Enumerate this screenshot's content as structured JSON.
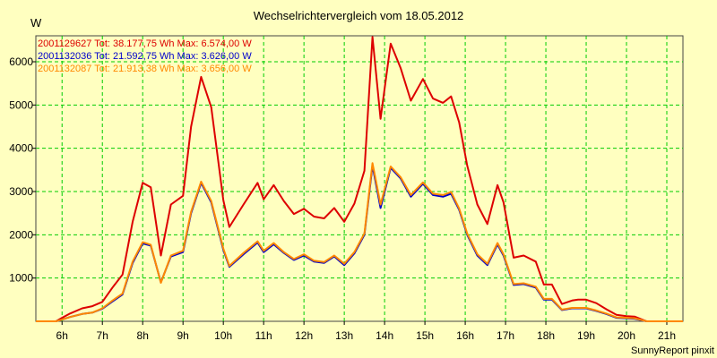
{
  "chart_data": {
    "type": "line",
    "title": "Wechselrichtervergleich vom 18.05.2012",
    "ylabel": "W",
    "xlabel": "",
    "ylim": [
      0,
      6600
    ],
    "xlim": [
      5.35,
      21.4
    ],
    "yticks": [
      1000,
      2000,
      3000,
      4000,
      5000,
      6000
    ],
    "yticks_labels": [
      "1000",
      "2000",
      "3000",
      "4000",
      "5000",
      "6000"
    ],
    "xticks": [
      6,
      7,
      8,
      9,
      10,
      11,
      12,
      13,
      14,
      15,
      16,
      17,
      18,
      19,
      20,
      21
    ],
    "xticks_labels": [
      "6h",
      "7h",
      "8h",
      "9h",
      "10h",
      "11h",
      "12h",
      "13h",
      "14h",
      "15h",
      "16h",
      "17h",
      "18h",
      "19h",
      "20h",
      "21h"
    ],
    "grid": true,
    "legend_position": "top-left",
    "footer": "SunnyReport pinxit",
    "series": [
      {
        "name": "2001129627",
        "legend": "2001129627 Tot: 38.177,75 Wh Max: 6.574,00 W",
        "color": "#dd0000",
        "x": [
          5.35,
          5.85,
          6.0,
          6.2,
          6.5,
          6.75,
          7.0,
          7.25,
          7.5,
          7.75,
          8.0,
          8.2,
          8.45,
          8.7,
          9.0,
          9.2,
          9.45,
          9.7,
          10.0,
          10.15,
          10.5,
          10.85,
          11.0,
          11.25,
          11.5,
          11.75,
          12.0,
          12.25,
          12.5,
          12.75,
          13.0,
          13.25,
          13.5,
          13.7,
          13.9,
          14.15,
          14.4,
          14.65,
          14.95,
          15.2,
          15.45,
          15.65,
          15.85,
          16.05,
          16.3,
          16.55,
          16.8,
          16.95,
          17.2,
          17.45,
          17.75,
          17.95,
          18.15,
          18.4,
          18.65,
          18.8,
          19.0,
          19.25,
          19.5,
          19.75,
          20.0,
          20.2,
          20.5,
          20.75,
          20.95,
          21.4
        ],
        "values": [
          0,
          0,
          80,
          180,
          300,
          350,
          450,
          780,
          1080,
          2300,
          3200,
          3100,
          1520,
          2700,
          2900,
          4500,
          5650,
          4950,
          2800,
          2180,
          2700,
          3200,
          2820,
          3150,
          2780,
          2480,
          2600,
          2420,
          2380,
          2620,
          2300,
          2720,
          3480,
          6574,
          4680,
          6420,
          5850,
          5100,
          5600,
          5150,
          5050,
          5200,
          4600,
          3600,
          2700,
          2250,
          3150,
          2750,
          1470,
          1520,
          1380,
          850,
          850,
          400,
          480,
          500,
          500,
          420,
          280,
          150,
          120,
          110,
          0,
          0,
          0,
          0
        ]
      },
      {
        "name": "2001132036",
        "legend": "2001132036 Tot: 21.592,75 Wh Max: 3.626,00 W",
        "color": "#0000cc",
        "x": [
          5.35,
          5.85,
          6.0,
          6.2,
          6.5,
          6.75,
          7.0,
          7.25,
          7.5,
          7.75,
          8.0,
          8.2,
          8.45,
          8.7,
          9.0,
          9.2,
          9.45,
          9.7,
          10.0,
          10.15,
          10.5,
          10.85,
          11.0,
          11.25,
          11.5,
          11.75,
          12.0,
          12.25,
          12.5,
          12.75,
          13.0,
          13.25,
          13.5,
          13.7,
          13.9,
          14.15,
          14.4,
          14.65,
          14.95,
          15.2,
          15.45,
          15.65,
          15.85,
          16.05,
          16.3,
          16.55,
          16.8,
          16.95,
          17.2,
          17.45,
          17.75,
          17.95,
          18.15,
          18.4,
          18.65,
          18.8,
          19.0,
          19.25,
          19.5,
          19.75,
          20.0,
          20.2,
          20.5,
          20.75,
          20.95,
          21.4
        ],
        "values": [
          0,
          0,
          40,
          100,
          170,
          200,
          290,
          460,
          620,
          1350,
          1800,
          1750,
          900,
          1500,
          1600,
          2500,
          3200,
          2750,
          1650,
          1260,
          1550,
          1820,
          1600,
          1780,
          1580,
          1420,
          1520,
          1380,
          1350,
          1500,
          1300,
          1570,
          2000,
          3600,
          2620,
          3550,
          3300,
          2880,
          3180,
          2920,
          2880,
          2950,
          2580,
          2000,
          1520,
          1300,
          1780,
          1520,
          840,
          860,
          780,
          500,
          500,
          260,
          300,
          300,
          300,
          240,
          170,
          80,
          70,
          60,
          0,
          0,
          0,
          0
        ]
      },
      {
        "name": "2001132087",
        "legend": "2001132087 Tot: 21.913,38 Wh Max: 3.656,00 W",
        "color": "#ff8800",
        "x": [
          5.35,
          5.85,
          6.0,
          6.2,
          6.5,
          6.75,
          7.0,
          7.25,
          7.5,
          7.75,
          8.0,
          8.2,
          8.45,
          8.7,
          9.0,
          9.2,
          9.45,
          9.7,
          10.0,
          10.15,
          10.5,
          10.85,
          11.0,
          11.25,
          11.5,
          11.75,
          12.0,
          12.25,
          12.5,
          12.75,
          13.0,
          13.25,
          13.5,
          13.7,
          13.9,
          14.15,
          14.4,
          14.65,
          14.95,
          15.2,
          15.45,
          15.65,
          15.85,
          16.05,
          16.3,
          16.55,
          16.8,
          16.95,
          17.2,
          17.45,
          17.75,
          17.95,
          18.15,
          18.4,
          18.65,
          18.8,
          19.0,
          19.25,
          19.5,
          19.75,
          20.0,
          20.2,
          20.5,
          20.75,
          20.95,
          21.4
        ],
        "values": [
          0,
          0,
          40,
          100,
          170,
          200,
          300,
          480,
          640,
          1380,
          1830,
          1770,
          890,
          1520,
          1630,
          2530,
          3230,
          2780,
          1680,
          1280,
          1580,
          1850,
          1630,
          1810,
          1600,
          1440,
          1550,
          1400,
          1370,
          1520,
          1330,
          1600,
          2030,
          3656,
          2700,
          3580,
          3330,
          2920,
          3210,
          2950,
          2920,
          2990,
          2610,
          2030,
          1550,
          1330,
          1810,
          1550,
          860,
          880,
          800,
          520,
          520,
          270,
          310,
          310,
          310,
          250,
          180,
          90,
          80,
          70,
          0,
          0,
          0,
          0
        ]
      }
    ]
  }
}
